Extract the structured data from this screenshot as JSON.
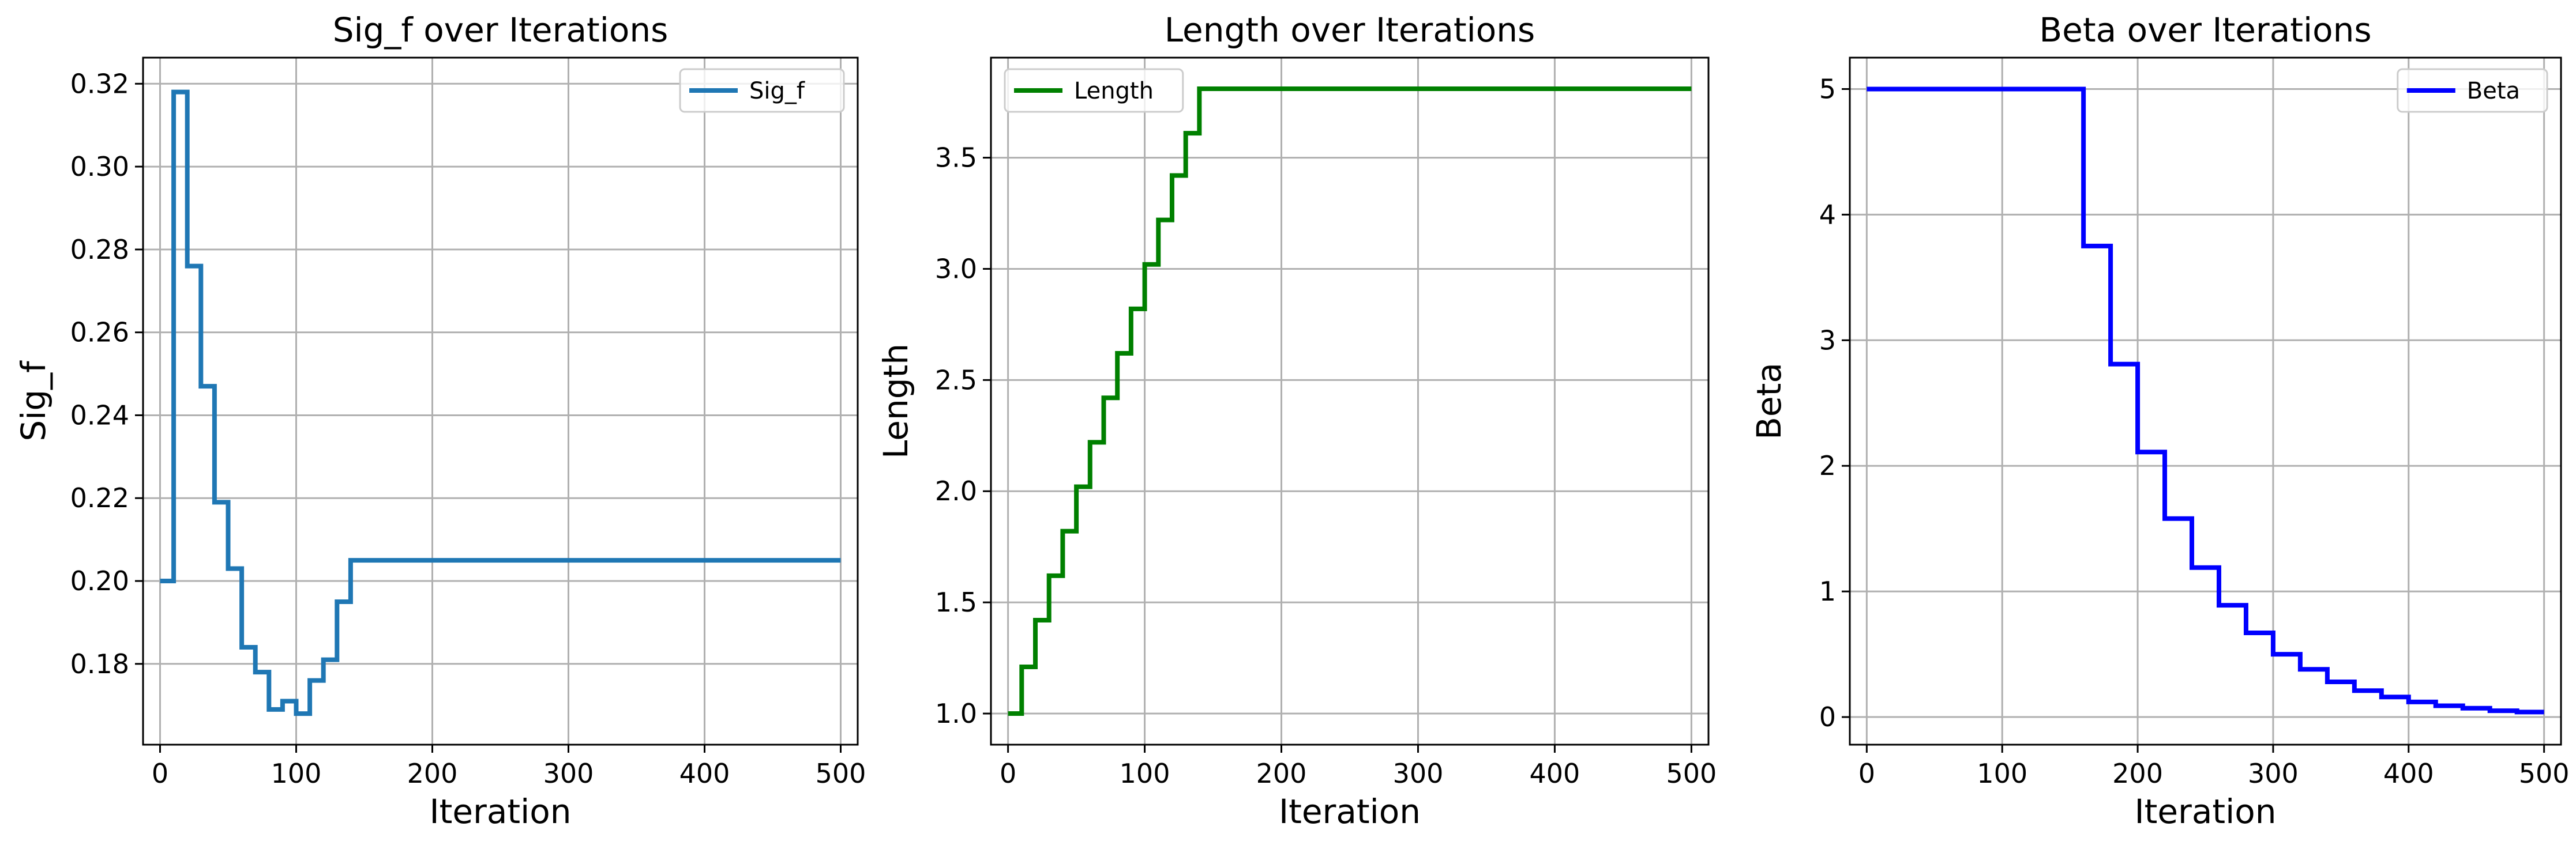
{
  "chart_data": [
    {
      "type": "line",
      "title": "Sig_f over Iterations",
      "xlabel": "Iteration",
      "ylabel": "Sig_f",
      "xlim": [
        -12.5,
        512.5
      ],
      "ylim": [
        0.1605,
        0.3263
      ],
      "xticks": [
        0,
        100,
        200,
        300,
        400,
        500
      ],
      "xtick_labels": [
        "0",
        "100",
        "200",
        "300",
        "400",
        "500"
      ],
      "yticks": [
        0.18,
        0.2,
        0.22,
        0.24,
        0.26,
        0.28,
        0.3,
        0.32
      ],
      "ytick_labels": [
        "0.18",
        "0.20",
        "0.22",
        "0.24",
        "0.26",
        "0.28",
        "0.30",
        "0.32"
      ],
      "grid": true,
      "legend": "top-right",
      "step": "post",
      "series": [
        {
          "name": "Sig_f",
          "color": "#1f77b4",
          "x": [
            0,
            10,
            20,
            30,
            40,
            50,
            60,
            70,
            80,
            90,
            100,
            110,
            120,
            130,
            140,
            150,
            500
          ],
          "y": [
            0.2,
            0.318,
            0.276,
            0.247,
            0.219,
            0.203,
            0.184,
            0.178,
            0.169,
            0.171,
            0.168,
            0.176,
            0.181,
            0.195,
            0.205,
            0.205,
            0.205
          ]
        }
      ]
    },
    {
      "type": "line",
      "title": "Length over Iterations",
      "xlabel": "Iteration",
      "ylabel": "Length",
      "xlim": [
        -12.5,
        512.5
      ],
      "ylim": [
        0.86,
        3.95
      ],
      "xticks": [
        0,
        100,
        200,
        300,
        400,
        500
      ],
      "xtick_labels": [
        "0",
        "100",
        "200",
        "300",
        "400",
        "500"
      ],
      "yticks": [
        1.0,
        1.5,
        2.0,
        2.5,
        3.0,
        3.5
      ],
      "ytick_labels": [
        "1.0",
        "1.5",
        "2.0",
        "2.5",
        "3.0",
        "3.5"
      ],
      "grid": true,
      "legend": "top-left",
      "step": "post",
      "series": [
        {
          "name": "Length",
          "color": "#008000",
          "x": [
            0,
            10,
            20,
            30,
            40,
            50,
            60,
            70,
            80,
            90,
            100,
            110,
            120,
            130,
            140,
            500
          ],
          "y": [
            1.0,
            1.21,
            1.42,
            1.62,
            1.82,
            2.02,
            2.22,
            2.42,
            2.62,
            2.82,
            3.02,
            3.22,
            3.42,
            3.61,
            3.81,
            3.81
          ]
        }
      ]
    },
    {
      "type": "line",
      "title": "Beta over Iterations",
      "xlabel": "Iteration",
      "ylabel": "Beta",
      "xlim": [
        -12.5,
        512.5
      ],
      "ylim": [
        -0.22,
        5.25
      ],
      "xticks": [
        0,
        100,
        200,
        300,
        400,
        500
      ],
      "xtick_labels": [
        "0",
        "100",
        "200",
        "300",
        "400",
        "500"
      ],
      "yticks": [
        0,
        1,
        2,
        3,
        4,
        5
      ],
      "ytick_labels": [
        "0",
        "1",
        "2",
        "3",
        "4",
        "5"
      ],
      "grid": true,
      "legend": "top-right",
      "step": "post",
      "series": [
        {
          "name": "Beta",
          "color": "#0000ff",
          "x": [
            0,
            160,
            180,
            200,
            220,
            240,
            260,
            280,
            300,
            320,
            340,
            360,
            380,
            400,
            420,
            440,
            460,
            480,
            500
          ],
          "y": [
            5.0,
            3.75,
            2.81,
            2.11,
            1.58,
            1.19,
            0.89,
            0.67,
            0.5,
            0.38,
            0.28,
            0.21,
            0.16,
            0.12,
            0.09,
            0.07,
            0.05,
            0.04,
            0.04
          ]
        }
      ]
    }
  ]
}
